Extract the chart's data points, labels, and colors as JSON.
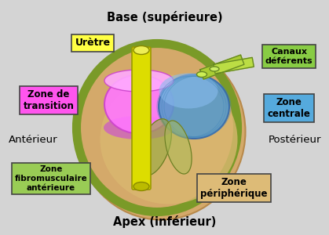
{
  "bg_color": "#d4d4d4",
  "title_top": "Base (supérieure)",
  "title_bottom": "Apex (inférieur)",
  "label_left": "Antérieur",
  "label_right": "Postérieur",
  "labels": {
    "uretre": "Urètre",
    "zone_transition": "Zone de\ntransition",
    "canaux": "Canaux\ndéférents",
    "zone_centrale": "Zone\ncentrale",
    "zone_fibro": "Zone\nfibromusculaire\nantérieure",
    "zone_peri": "Zone\npériphérique"
  },
  "colors": {
    "bg_outer": "#d4a96a",
    "outer_border_green": "#7a9a28",
    "zone_transition": "#ff77ff",
    "zone_centrale": "#5599cc",
    "uretre_color": "#dddd00",
    "canaux_color": "#99bb33",
    "label_bg_uretre": "#ffff44",
    "label_bg_transition": "#ff55ee",
    "label_bg_canaux": "#88cc44",
    "label_bg_centrale": "#55aadd",
    "label_bg_fibro": "#99cc55",
    "label_bg_peri": "#ddbb77"
  }
}
